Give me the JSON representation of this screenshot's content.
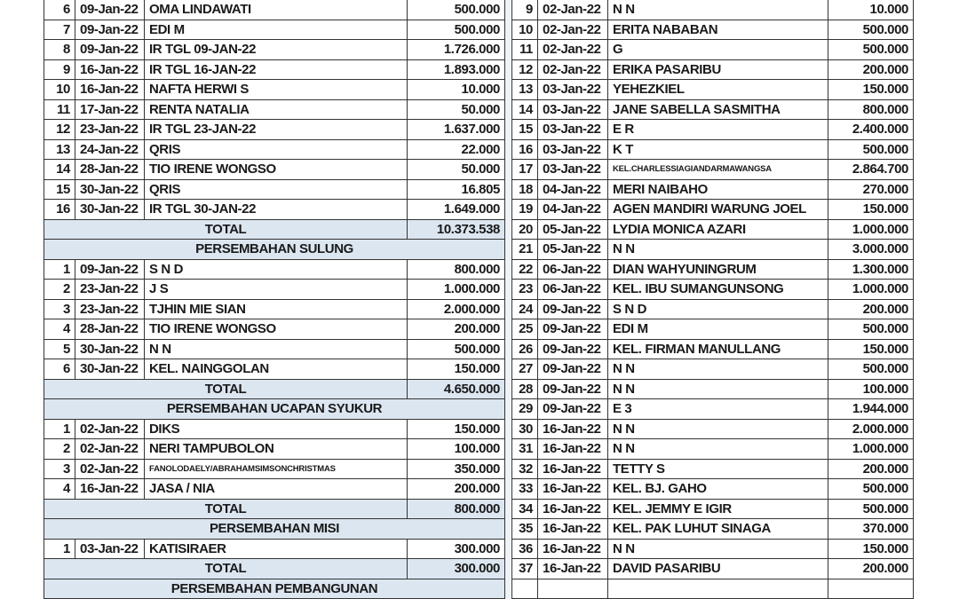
{
  "left": {
    "rows": [
      {
        "type": "entry",
        "no": "6",
        "date": "09-Jan-22",
        "name": "OMA LINDAWATI",
        "amount": "500.000"
      },
      {
        "type": "entry",
        "no": "7",
        "date": "09-Jan-22",
        "name": "EDI M",
        "amount": "500.000"
      },
      {
        "type": "entry",
        "no": "8",
        "date": "09-Jan-22",
        "name": "IR TGL 09-JAN-22",
        "amount": "1.726.000"
      },
      {
        "type": "entry",
        "no": "9",
        "date": "16-Jan-22",
        "name": "IR TGL 16-JAN-22",
        "amount": "1.893.000"
      },
      {
        "type": "entry",
        "no": "10",
        "date": "16-Jan-22",
        "name": "NAFTA HERWI S",
        "amount": "10.000"
      },
      {
        "type": "entry",
        "no": "11",
        "date": "17-Jan-22",
        "name": "RENTA NATALIA",
        "amount": "50.000"
      },
      {
        "type": "entry",
        "no": "12",
        "date": "23-Jan-22",
        "name": "IR TGL 23-JAN-22",
        "amount": "1.637.000"
      },
      {
        "type": "entry",
        "no": "13",
        "date": "24-Jan-22",
        "name": "QRIS",
        "amount": "22.000"
      },
      {
        "type": "entry",
        "no": "14",
        "date": "28-Jan-22",
        "name": "TIO IRENE WONGSO",
        "amount": "50.000"
      },
      {
        "type": "entry",
        "no": "15",
        "date": "30-Jan-22",
        "name": "QRIS",
        "amount": "16.805"
      },
      {
        "type": "entry",
        "no": "16",
        "date": "30-Jan-22",
        "name": "IR TGL 30-JAN-22",
        "amount": "1.649.000"
      },
      {
        "type": "total",
        "label": "TOTAL",
        "amount": "10.373.538"
      },
      {
        "type": "header",
        "label": "PERSEMBAHAN SULUNG"
      },
      {
        "type": "entry",
        "no": "1",
        "date": "09-Jan-22",
        "name": "S N D",
        "amount": "800.000"
      },
      {
        "type": "entry",
        "no": "2",
        "date": "23-Jan-22",
        "name": "J S",
        "amount": "1.000.000"
      },
      {
        "type": "entry",
        "no": "3",
        "date": "23-Jan-22",
        "name": "TJHIN MIE SIAN",
        "amount": "2.000.000"
      },
      {
        "type": "entry",
        "no": "4",
        "date": "28-Jan-22",
        "name": "TIO IRENE WONGSO",
        "amount": "200.000"
      },
      {
        "type": "entry",
        "no": "5",
        "date": "30-Jan-22",
        "name": "N N",
        "amount": "500.000"
      },
      {
        "type": "entry",
        "no": "6",
        "date": "30-Jan-22",
        "name": "KEL. NAINGGOLAN",
        "amount": "150.000"
      },
      {
        "type": "total",
        "label": "TOTAL",
        "amount": "4.650.000"
      },
      {
        "type": "header",
        "label": "PERSEMBAHAN UCAPAN SYUKUR"
      },
      {
        "type": "entry",
        "no": "1",
        "date": "02-Jan-22",
        "name": "DIKS",
        "amount": "150.000"
      },
      {
        "type": "entry",
        "no": "2",
        "date": "02-Jan-22",
        "name": "NERI TAMPUBOLON",
        "amount": "100.000"
      },
      {
        "type": "entry",
        "no": "3",
        "date": "02-Jan-22",
        "name": "FANOLODAELY/ABRAHAMSIMSONCHRISTMAS",
        "amount": "350.000",
        "small": true
      },
      {
        "type": "entry",
        "no": "4",
        "date": "16-Jan-22",
        "name": "JASA / NIA",
        "amount": "200.000"
      },
      {
        "type": "total",
        "label": "TOTAL",
        "amount": "800.000"
      },
      {
        "type": "header",
        "label": "PERSEMBAHAN MISI"
      },
      {
        "type": "entry",
        "no": "1",
        "date": "03-Jan-22",
        "name": "KATISIRAER",
        "amount": "300.000"
      },
      {
        "type": "total",
        "label": "TOTAL",
        "amount": "300.000"
      },
      {
        "type": "header",
        "label": "PERSEMBAHAN PEMBANGUNAN"
      }
    ]
  },
  "right": {
    "rows": [
      {
        "type": "entry",
        "no": "9",
        "date": "02-Jan-22",
        "name": "N N",
        "amount": "10.000"
      },
      {
        "type": "entry",
        "no": "10",
        "date": "02-Jan-22",
        "name": "ERITA NABABAN",
        "amount": "500.000"
      },
      {
        "type": "entry",
        "no": "11",
        "date": "02-Jan-22",
        "name": "G",
        "amount": "500.000"
      },
      {
        "type": "entry",
        "no": "12",
        "date": "02-Jan-22",
        "name": "ERIKA PASARIBU",
        "amount": "200.000"
      },
      {
        "type": "entry",
        "no": "13",
        "date": "03-Jan-22",
        "name": "YEHEZKIEL",
        "amount": "150.000"
      },
      {
        "type": "entry",
        "no": "14",
        "date": "03-Jan-22",
        "name": "JANE SABELLA SASMITHA",
        "amount": "800.000"
      },
      {
        "type": "entry",
        "no": "15",
        "date": "03-Jan-22",
        "name": "E R",
        "amount": "2.400.000"
      },
      {
        "type": "entry",
        "no": "16",
        "date": "03-Jan-22",
        "name": "K T",
        "amount": "500.000"
      },
      {
        "type": "entry",
        "no": "17",
        "date": "03-Jan-22",
        "name": "KEL.CHARLESSIAGIANDARMAWANGSA",
        "amount": "2.864.700",
        "small": true
      },
      {
        "type": "entry",
        "no": "18",
        "date": "04-Jan-22",
        "name": "MERI NAIBAHO",
        "amount": "270.000"
      },
      {
        "type": "entry",
        "no": "19",
        "date": "04-Jan-22",
        "name": "AGEN MANDIRI WARUNG JOEL",
        "amount": "150.000"
      },
      {
        "type": "entry",
        "no": "20",
        "date": "05-Jan-22",
        "name": "LYDIA MONICA AZARI",
        "amount": "1.000.000"
      },
      {
        "type": "entry",
        "no": "21",
        "date": "05-Jan-22",
        "name": "N N",
        "amount": "3.000.000"
      },
      {
        "type": "entry",
        "no": "22",
        "date": "06-Jan-22",
        "name": "DIAN WAHYUNINGRUM",
        "amount": "1.300.000"
      },
      {
        "type": "entry",
        "no": "23",
        "date": "06-Jan-22",
        "name": "KEL. IBU SUMANGUNSONG",
        "amount": "1.000.000"
      },
      {
        "type": "entry",
        "no": "24",
        "date": "09-Jan-22",
        "name": "S N D",
        "amount": "200.000"
      },
      {
        "type": "entry",
        "no": "25",
        "date": "09-Jan-22",
        "name": "EDI M",
        "amount": "500.000"
      },
      {
        "type": "entry",
        "no": "26",
        "date": "09-Jan-22",
        "name": "KEL. FIRMAN MANULLANG",
        "amount": "150.000"
      },
      {
        "type": "entry",
        "no": "27",
        "date": "09-Jan-22",
        "name": "N N",
        "amount": "500.000"
      },
      {
        "type": "entry",
        "no": "28",
        "date": "09-Jan-22",
        "name": "N N",
        "amount": "100.000"
      },
      {
        "type": "entry",
        "no": "29",
        "date": "09-Jan-22",
        "name": "E 3",
        "amount": "1.944.000"
      },
      {
        "type": "entry",
        "no": "30",
        "date": "16-Jan-22",
        "name": "N N",
        "amount": "2.000.000"
      },
      {
        "type": "entry",
        "no": "31",
        "date": "16-Jan-22",
        "name": "N N",
        "amount": "1.000.000"
      },
      {
        "type": "entry",
        "no": "32",
        "date": "16-Jan-22",
        "name": "TETTY S",
        "amount": "200.000"
      },
      {
        "type": "entry",
        "no": "33",
        "date": "16-Jan-22",
        "name": "KEL. BJ. GAHO",
        "amount": "500.000"
      },
      {
        "type": "entry",
        "no": "34",
        "date": "16-Jan-22",
        "name": "KEL. JEMMY E IGIR",
        "amount": "500.000"
      },
      {
        "type": "entry",
        "no": "35",
        "date": "16-Jan-22",
        "name": "KEL. PAK LUHUT SINAGA",
        "amount": "370.000"
      },
      {
        "type": "entry",
        "no": "36",
        "date": "16-Jan-22",
        "name": "N N",
        "amount": "150.000"
      },
      {
        "type": "entry",
        "no": "37",
        "date": "16-Jan-22",
        "name": "DAVID PASARIBU",
        "amount": "200.000"
      },
      {
        "type": "entry",
        "no": "",
        "date": "",
        "name": "",
        "amount": ""
      }
    ]
  },
  "colors": {
    "section_fill": "#dce6f1",
    "border": "#333333"
  }
}
